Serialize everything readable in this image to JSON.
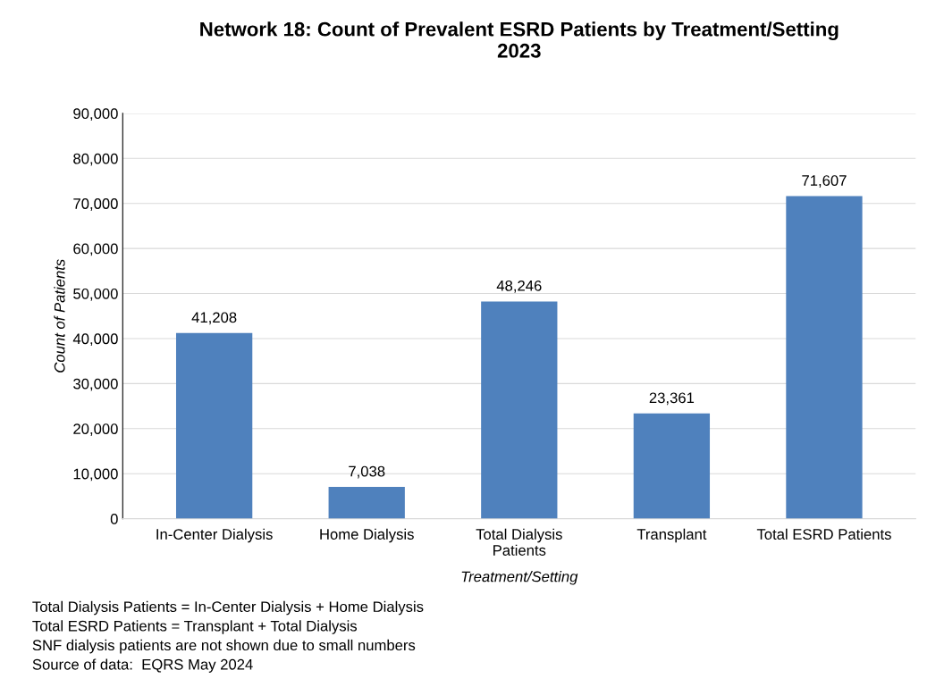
{
  "chart_data": {
    "type": "bar",
    "title": "Network 18: Count of Prevalent ESRD Patients by Treatment/Setting\n2023",
    "categories": [
      "In-Center Dialysis",
      "Home Dialysis",
      "Total Dialysis\nPatients",
      "Transplant",
      "Total ESRD Patients"
    ],
    "values": [
      41208,
      7038,
      48246,
      23361,
      71607
    ],
    "color": "#4f81bd",
    "value_labels": [
      "41,208",
      "7,038",
      "48,246",
      "23,361",
      "71,607"
    ],
    "xlabel": "Treatment/Setting",
    "ylabel": "Count of Patients",
    "ylim": [
      0,
      90000
    ],
    "yticks": [
      {
        "value": 0,
        "label": "0"
      },
      {
        "value": 10000,
        "label": "10,000"
      },
      {
        "value": 20000,
        "label": "20,000"
      },
      {
        "value": 30000,
        "label": "30,000"
      },
      {
        "value": 40000,
        "label": "40,000"
      },
      {
        "value": 50000,
        "label": "50,000"
      },
      {
        "value": 60000,
        "label": "60,000"
      },
      {
        "value": 70000,
        "label": "70,000"
      },
      {
        "value": 80000,
        "label": "80,000"
      },
      {
        "value": 90000,
        "label": "90,000"
      }
    ],
    "grid": "y",
    "annotations": [
      "Total Dialysis Patients = In-Center Dialysis + Home Dialysis",
      "Total ESRD Patients = Transplant + Total Dialysis",
      "SNF dialysis patients are not shown due to small numbers",
      "Source of data:  EQRS May 2024"
    ]
  }
}
